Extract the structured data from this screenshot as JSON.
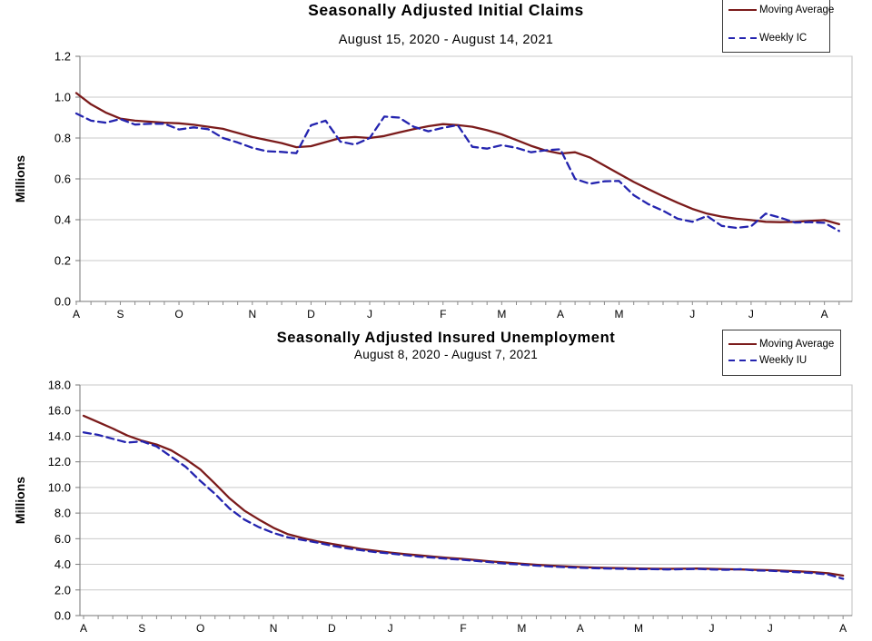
{
  "chart_data": [
    {
      "type": "line",
      "title": "Seasonally Adjusted Initial Claims",
      "subtitle": "August 15, 2020 - August 14, 2021",
      "ylabel": "Millions",
      "ylim": [
        0,
        1.2
      ],
      "ytick_step": 0.2,
      "ytick_decimals": 1,
      "grid": true,
      "legend_position": "top-right",
      "x_month_labels": [
        [
          "A",
          0
        ],
        [
          "S",
          3
        ],
        [
          "O",
          7
        ],
        [
          "N",
          12
        ],
        [
          "D",
          16
        ],
        [
          "J",
          20
        ],
        [
          "F",
          25
        ],
        [
          "M",
          29
        ],
        [
          "A",
          33
        ],
        [
          "M",
          37
        ],
        [
          "J",
          42
        ],
        [
          "J",
          46
        ],
        [
          "A",
          51
        ]
      ],
      "series": [
        {
          "name": "Moving Average",
          "color": "#7B1B1B",
          "dash": "solid",
          "values": [
            1.02,
            0.965,
            0.925,
            0.895,
            0.885,
            0.88,
            0.875,
            0.872,
            0.865,
            0.855,
            0.845,
            0.825,
            0.805,
            0.79,
            0.775,
            0.755,
            0.76,
            0.78,
            0.8,
            0.805,
            0.8,
            0.81,
            0.827,
            0.843,
            0.858,
            0.868,
            0.863,
            0.855,
            0.838,
            0.818,
            0.79,
            0.762,
            0.738,
            0.724,
            0.73,
            0.705,
            0.665,
            0.625,
            0.585,
            0.55,
            0.515,
            0.483,
            0.453,
            0.43,
            0.415,
            0.405,
            0.398,
            0.39,
            0.388,
            0.39,
            0.394,
            0.398,
            0.378
          ]
        },
        {
          "name": "Weekly IC",
          "color": "#2424AF",
          "dash": "dashed",
          "values": [
            0.92,
            0.885,
            0.875,
            0.893,
            0.866,
            0.87,
            0.87,
            0.842,
            0.852,
            0.843,
            0.8,
            0.778,
            0.752,
            0.735,
            0.732,
            0.726,
            0.862,
            0.885,
            0.782,
            0.768,
            0.8,
            0.905,
            0.9,
            0.855,
            0.833,
            0.85,
            0.863,
            0.757,
            0.748,
            0.765,
            0.752,
            0.73,
            0.74,
            0.745,
            0.6,
            0.576,
            0.588,
            0.59,
            0.52,
            0.476,
            0.444,
            0.405,
            0.39,
            0.418,
            0.37,
            0.36,
            0.368,
            0.43,
            0.41,
            0.386,
            0.388,
            0.385,
            0.345
          ]
        }
      ]
    },
    {
      "type": "line",
      "title": "Seasonally Adjusted Insured Unemployment",
      "subtitle": "August 8, 2020 - August 7, 2021",
      "ylabel": "Millions",
      "ylim": [
        0,
        18
      ],
      "ytick_step": 2,
      "ytick_decimals": 1,
      "grid": true,
      "legend_position": "top-right",
      "x_month_labels": [
        [
          "A",
          0
        ],
        [
          "S",
          4
        ],
        [
          "O",
          8
        ],
        [
          "N",
          13
        ],
        [
          "D",
          17
        ],
        [
          "J",
          21
        ],
        [
          "F",
          26
        ],
        [
          "M",
          30
        ],
        [
          "A",
          34
        ],
        [
          "M",
          38
        ],
        [
          "J",
          43
        ],
        [
          "J",
          47
        ],
        [
          "A",
          52
        ]
      ],
      "series": [
        {
          "name": "Moving Average",
          "color": "#7B1B1B",
          "dash": "solid",
          "values": [
            15.6,
            15.1,
            14.6,
            14.05,
            13.65,
            13.35,
            12.9,
            12.2,
            11.4,
            10.3,
            9.15,
            8.2,
            7.5,
            6.85,
            6.35,
            6.05,
            5.8,
            5.6,
            5.4,
            5.2,
            5.05,
            4.92,
            4.8,
            4.7,
            4.6,
            4.5,
            4.42,
            4.32,
            4.22,
            4.13,
            4.05,
            3.97,
            3.9,
            3.84,
            3.79,
            3.75,
            3.72,
            3.7,
            3.68,
            3.66,
            3.65,
            3.66,
            3.67,
            3.65,
            3.62,
            3.6,
            3.57,
            3.54,
            3.5,
            3.45,
            3.39,
            3.3,
            3.12
          ]
        },
        {
          "name": "Weekly IU",
          "color": "#2424AF",
          "dash": "dashed",
          "values": [
            14.3,
            14.1,
            13.8,
            13.5,
            13.6,
            13.2,
            12.4,
            11.6,
            10.5,
            9.5,
            8.35,
            7.5,
            6.9,
            6.45,
            6.1,
            5.9,
            5.7,
            5.45,
            5.25,
            5.1,
            4.95,
            4.85,
            4.72,
            4.6,
            4.52,
            4.42,
            4.35,
            4.25,
            4.15,
            4.05,
            3.98,
            3.9,
            3.83,
            3.78,
            3.73,
            3.7,
            3.67,
            3.65,
            3.63,
            3.62,
            3.6,
            3.62,
            3.64,
            3.6,
            3.57,
            3.62,
            3.52,
            3.5,
            3.44,
            3.38,
            3.32,
            3.2,
            2.87
          ]
        }
      ]
    }
  ]
}
